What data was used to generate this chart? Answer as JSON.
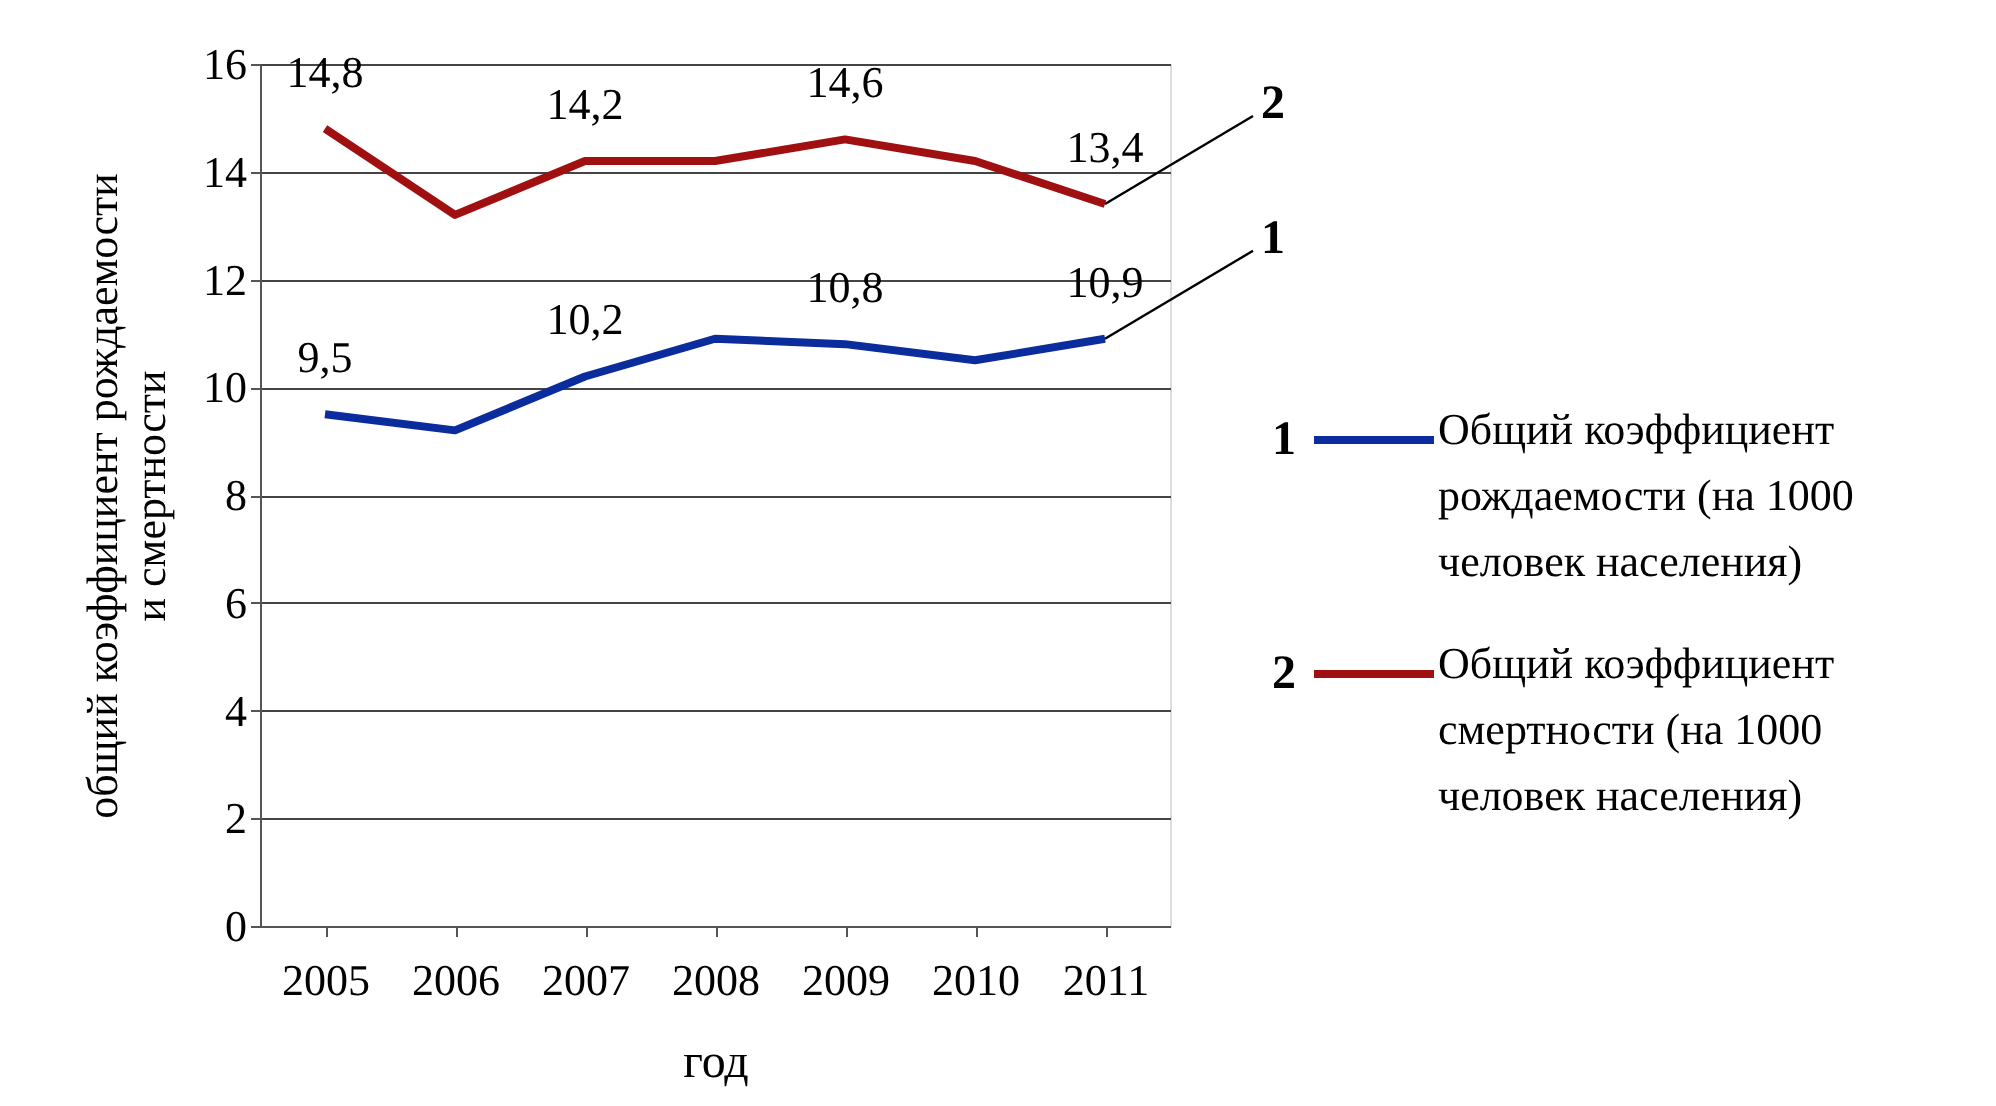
{
  "chart_data": {
    "type": "line",
    "xlabel": "год",
    "ylabel": "общий коэффициент рождаемости\nи смертности",
    "categories": [
      "2005",
      "2006",
      "2007",
      "2008",
      "2009",
      "2010",
      "2011"
    ],
    "series": [
      {
        "name": "Общий коэффициент\nрождаемости (на 1000\nчеловек населения)",
        "color": "#0b2c9c",
        "values": [
          9.5,
          9.2,
          10.2,
          10.9,
          10.8,
          10.5,
          10.9
        ],
        "value_labels": [
          "9,5",
          null,
          "10,2",
          null,
          "10,8",
          null,
          "10,9"
        ]
      },
      {
        "name": "Общий коэффициент\nсмертности (на 1000\nчеловек населения)",
        "color": "#a01010",
        "values": [
          14.8,
          13.2,
          14.2,
          14.2,
          14.6,
          14.2,
          13.4
        ],
        "value_labels": [
          "14,8",
          null,
          "14,2",
          null,
          "14,6",
          null,
          "13,4"
        ]
      }
    ],
    "annotations": [
      "1",
      "2",
      {
        "text": "1",
        "x": "2011",
        "y": 10.9
      },
      {
        "text": "2",
        "x": "2011",
        "y": 13.4
      }
    ],
    "ylim": [
      0,
      16
    ],
    "yticks": [
      0,
      2,
      4,
      6,
      8,
      10,
      12,
      14,
      16
    ],
    "grid": "y",
    "legend": "right",
    "marker": "none",
    "line_style": "solid"
  }
}
